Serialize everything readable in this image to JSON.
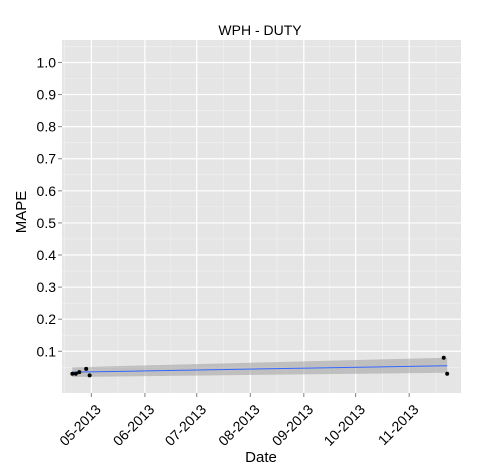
{
  "chart_data": {
    "type": "scatter",
    "title": "WPH -   DUTY",
    "xlabel": "Date",
    "ylabel": "MAPE",
    "grid": true,
    "x_tick_labels": [
      "05-2013",
      "06-2013",
      "07-2013",
      "08-2013",
      "09-2013",
      "10-2013",
      "11-2013"
    ],
    "y_tick_labels": [
      "0.1",
      "0.2",
      "0.3",
      "0.4",
      "0.5",
      "0.6",
      "0.7",
      "0.8",
      "0.9",
      "1.0"
    ],
    "xlim": [
      "2013-04-14",
      "2013-12-01"
    ],
    "ylim": [
      -0.03,
      1.07
    ],
    "points": [
      {
        "x": "2013-04-20",
        "y": 0.03
      },
      {
        "x": "2013-04-22",
        "y": 0.03
      },
      {
        "x": "2013-04-24",
        "y": 0.035
      },
      {
        "x": "2013-04-28",
        "y": 0.045
      },
      {
        "x": "2013-04-30",
        "y": 0.025
      },
      {
        "x": "2013-11-21",
        "y": 0.08
      },
      {
        "x": "2013-11-23",
        "y": 0.03
      }
    ],
    "trend": {
      "method": "linear",
      "start": {
        "x": "2013-04-20",
        "y": 0.035
      },
      "end": {
        "x": "2013-11-23",
        "y": 0.055
      },
      "band_start": [
        0.02,
        0.05
      ],
      "band_end": [
        0.033,
        0.08
      ]
    },
    "colors": {
      "panel": "#e5e5e5",
      "grid_major": "#ffffff",
      "grid_minor": "#f2f2f2",
      "point": "#000000",
      "trend": "#3366ff",
      "band": "#999999"
    }
  }
}
